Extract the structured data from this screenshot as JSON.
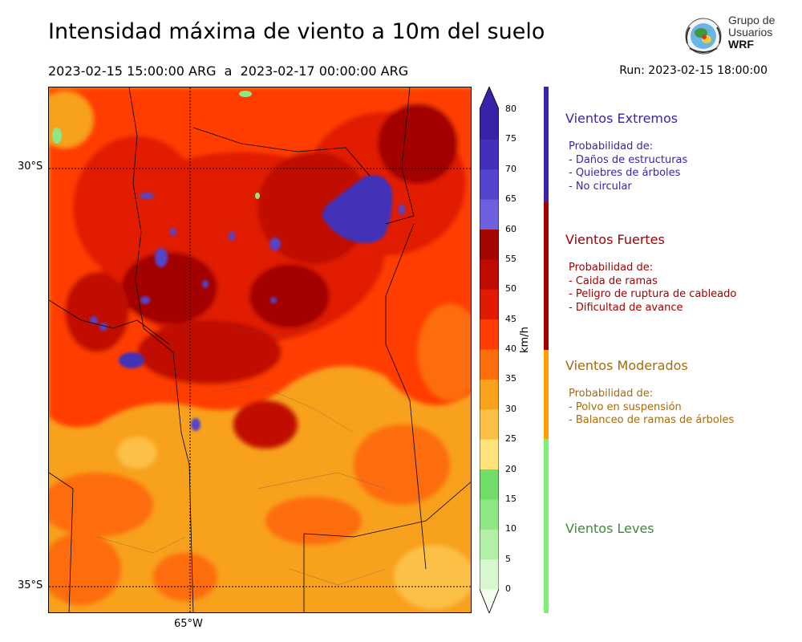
{
  "header": {
    "title": "Intensidad máxima de viento a 10m del suelo",
    "period": "2023-02-15 15:00:00 ARG  a  2023-02-17 00:00:00 ARG",
    "run": "Run: 2023-02-15 18:00:00"
  },
  "logo": {
    "line1": "Grupo de",
    "line2": "Usuarios",
    "line3": "WRF"
  },
  "map": {
    "lat_labels": [
      "30°S",
      "35°S"
    ],
    "lon_labels": [
      "65°W"
    ]
  },
  "colorbar": {
    "unit": "km/h",
    "ticks": [
      "0",
      "5",
      "10",
      "15",
      "20",
      "25",
      "30",
      "35",
      "40",
      "45",
      "50",
      "55",
      "60",
      "65",
      "70",
      "75",
      "80"
    ],
    "colors": [
      "#f4fdf0",
      "#d7f8cf",
      "#b3f0a7",
      "#8fe685",
      "#6fdd68",
      "#ffe37a",
      "#fcc046",
      "#faa219",
      "#fd6d09",
      "#ff3c02",
      "#e11b02",
      "#c00b00",
      "#a30501",
      "#6f60e0",
      "#5445cc",
      "#4330b8",
      "#3623a8"
    ]
  },
  "categories": [
    {
      "title": "Vientos Extremos",
      "color": "#3a25a8",
      "prob_title": "Probabilidad de:",
      "items": [
        "- Daños de estructuras",
        "- Quiebres de árboles",
        "- No circular"
      ]
    },
    {
      "title": "Vientos Fuertes",
      "color": "#a30000",
      "prob_title": "Probabilidad de:",
      "items": [
        "- Caida de ramas",
        "- Peligro de ruptura de cableado",
        "- Dificultad de avance"
      ]
    },
    {
      "title": "Vientos Moderados",
      "color": "#a86a0a",
      "prob_title": "Probabilidad de:",
      "items": [
        "- Polvo en suspensión",
        "- Balanceo de ramas de árboles"
      ]
    },
    {
      "title": "Vientos Leves",
      "color": "#3b8a38",
      "prob_title": "",
      "items": []
    }
  ]
}
